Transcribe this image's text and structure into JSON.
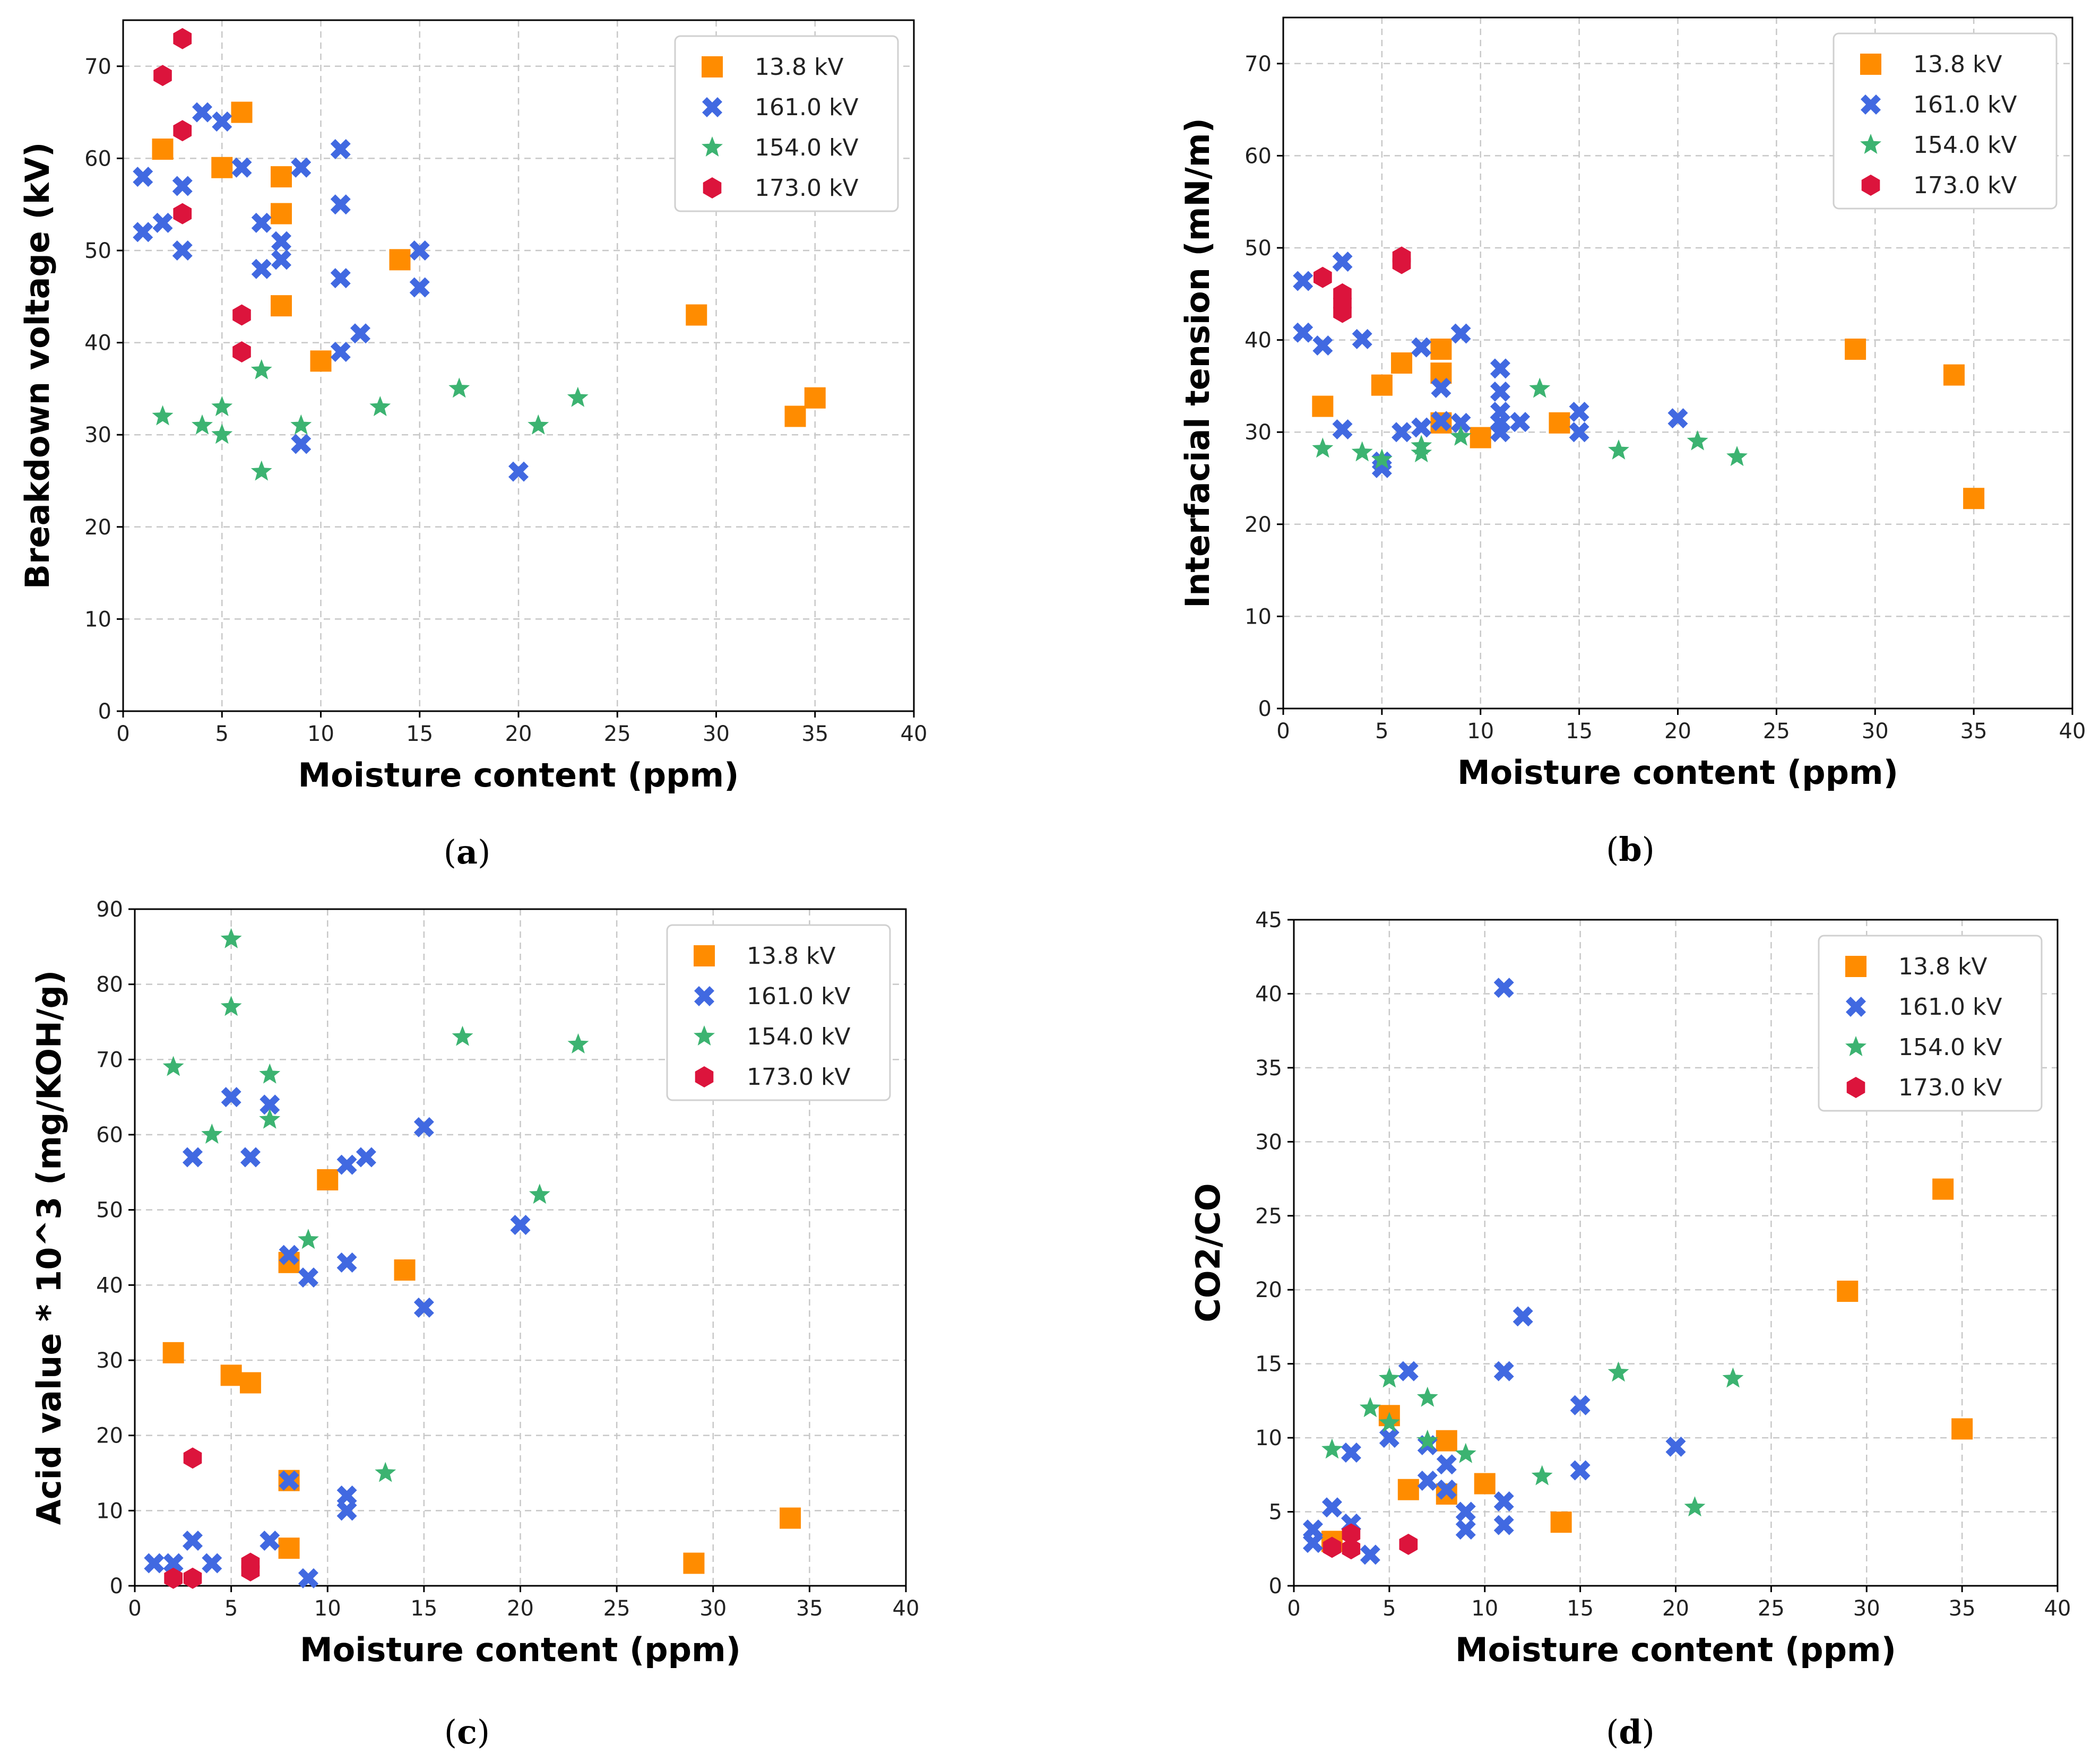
{
  "series_styles": [
    {
      "name": "13.8 kV",
      "marker": "square",
      "color": "#FF8C00"
    },
    {
      "name": "161.0 kV",
      "marker": "x",
      "color": "#4169E1"
    },
    {
      "name": "154.0 kV",
      "marker": "star",
      "color": "#3CB371"
    },
    {
      "name": "173.0 kV",
      "marker": "hexagon",
      "color": "#DC143C"
    }
  ],
  "chart_data": [
    {
      "type": "scatter",
      "caption_letter": "a",
      "xlabel": "Moisture content (ppm)",
      "ylabel": "Breakdown voltage (kV)",
      "xlim": [
        0,
        40
      ],
      "ylim": [
        0,
        75
      ],
      "xticks": [
        0,
        5,
        10,
        15,
        20,
        25,
        30,
        35,
        40
      ],
      "yticks": [
        0,
        10,
        20,
        30,
        40,
        50,
        60,
        70
      ],
      "legend_position": "top-right",
      "series": [
        {
          "name": "13.8 kV",
          "points": [
            [
              2,
              61
            ],
            [
              5,
              59
            ],
            [
              6,
              65
            ],
            [
              8,
              58
            ],
            [
              8,
              54
            ],
            [
              8,
              44
            ],
            [
              10,
              38
            ],
            [
              14,
              49
            ],
            [
              29,
              43
            ],
            [
              34,
              32
            ],
            [
              35,
              34
            ]
          ]
        },
        {
          "name": "161.0 kV",
          "points": [
            [
              1,
              58
            ],
            [
              1,
              52
            ],
            [
              2,
              53
            ],
            [
              3,
              57
            ],
            [
              3,
              50
            ],
            [
              4,
              65
            ],
            [
              5,
              64
            ],
            [
              6,
              59
            ],
            [
              7,
              53
            ],
            [
              7,
              48
            ],
            [
              8,
              51
            ],
            [
              8,
              49
            ],
            [
              9,
              59
            ],
            [
              9,
              29
            ],
            [
              11,
              61
            ],
            [
              11,
              55
            ],
            [
              11,
              47
            ],
            [
              11,
              39
            ],
            [
              12,
              41
            ],
            [
              15,
              50
            ],
            [
              15,
              46
            ],
            [
              20,
              26
            ]
          ]
        },
        {
          "name": "154.0 kV",
          "points": [
            [
              2,
              32
            ],
            [
              4,
              31
            ],
            [
              5,
              33
            ],
            [
              5,
              30
            ],
            [
              7,
              37
            ],
            [
              7,
              26
            ],
            [
              9,
              31
            ],
            [
              13,
              33
            ],
            [
              17,
              35
            ],
            [
              21,
              31
            ],
            [
              23,
              34
            ]
          ]
        },
        {
          "name": "173.0 kV",
          "points": [
            [
              2,
              69
            ],
            [
              3,
              73
            ],
            [
              3,
              63
            ],
            [
              3,
              54
            ],
            [
              6,
              43
            ],
            [
              6,
              39
            ]
          ]
        }
      ]
    },
    {
      "type": "scatter",
      "caption_letter": "b",
      "xlabel": "Moisture content (ppm)",
      "ylabel": "Interfacial tension (mN/m)",
      "xlim": [
        0,
        40
      ],
      "ylim": [
        0,
        75
      ],
      "xticks": [
        0,
        5,
        10,
        15,
        20,
        25,
        30,
        35,
        40
      ],
      "yticks": [
        0,
        10,
        20,
        30,
        40,
        50,
        60,
        70
      ],
      "legend_position": "top-right",
      "series": [
        {
          "name": "13.8 kV",
          "points": [
            [
              2,
              32.8
            ],
            [
              5,
              35.1
            ],
            [
              6,
              37.5
            ],
            [
              8,
              39
            ],
            [
              8,
              36.4
            ],
            [
              8,
              31
            ],
            [
              10,
              29.4
            ],
            [
              14,
              31
            ],
            [
              29,
              39
            ],
            [
              34,
              36.2
            ],
            [
              35,
              22.8
            ]
          ]
        },
        {
          "name": "161.0 kV",
          "points": [
            [
              1,
              46.4
            ],
            [
              1,
              40.8
            ],
            [
              2,
              39.4
            ],
            [
              3,
              48.5
            ],
            [
              3,
              30.3
            ],
            [
              4,
              40.1
            ],
            [
              5,
              26.8
            ],
            [
              5,
              26.1
            ],
            [
              6,
              30
            ],
            [
              7,
              39.2
            ],
            [
              7,
              30.5
            ],
            [
              8,
              34.8
            ],
            [
              8,
              31.2
            ],
            [
              9,
              40.7
            ],
            [
              9,
              31
            ],
            [
              11,
              36.9
            ],
            [
              11,
              34.4
            ],
            [
              11,
              32.2
            ],
            [
              11,
              31
            ],
            [
              11,
              30
            ],
            [
              12,
              31.1
            ],
            [
              15,
              32.2
            ],
            [
              15,
              30
            ],
            [
              20,
              31.5
            ]
          ]
        },
        {
          "name": "154.0 kV",
          "points": [
            [
              2,
              28.2
            ],
            [
              4,
              27.8
            ],
            [
              5,
              27
            ],
            [
              7,
              28.5
            ],
            [
              7,
              27.7
            ],
            [
              9,
              29.5
            ],
            [
              13,
              34.7
            ],
            [
              17,
              28
            ],
            [
              21,
              29
            ],
            [
              23,
              27.3
            ]
          ]
        },
        {
          "name": "173.0 kV",
          "points": [
            [
              2,
              46.8
            ],
            [
              3,
              45
            ],
            [
              3,
              44
            ],
            [
              3,
              43
            ],
            [
              6,
              49
            ],
            [
              6,
              48.3
            ]
          ]
        }
      ]
    },
    {
      "type": "scatter",
      "caption_letter": "c",
      "xlabel": "Moisture content (ppm)",
      "ylabel": "Acid value * 10^3 (mg/KOH/g)",
      "xlim": [
        0,
        40
      ],
      "ylim": [
        0,
        90
      ],
      "xticks": [
        0,
        5,
        10,
        15,
        20,
        25,
        30,
        35,
        40
      ],
      "yticks": [
        0,
        10,
        20,
        30,
        40,
        50,
        60,
        70,
        80,
        90
      ],
      "legend_position": "top-right",
      "series": [
        {
          "name": "13.8 kV",
          "points": [
            [
              2,
              31
            ],
            [
              5,
              28
            ],
            [
              6,
              27
            ],
            [
              8,
              43
            ],
            [
              8,
              14
            ],
            [
              8,
              5
            ],
            [
              10,
              54
            ],
            [
              14,
              42
            ],
            [
              29,
              3
            ],
            [
              34,
              9
            ]
          ]
        },
        {
          "name": "161.0 kV",
          "points": [
            [
              1,
              3
            ],
            [
              2,
              3
            ],
            [
              3,
              57
            ],
            [
              3,
              6
            ],
            [
              4,
              3
            ],
            [
              5,
              65
            ],
            [
              6,
              57
            ],
            [
              7,
              64
            ],
            [
              7,
              6
            ],
            [
              8,
              44
            ],
            [
              8,
              14
            ],
            [
              9,
              41
            ],
            [
              9,
              1
            ],
            [
              11,
              56
            ],
            [
              11,
              43
            ],
            [
              11,
              12
            ],
            [
              11,
              10
            ],
            [
              12,
              57
            ],
            [
              15,
              61
            ],
            [
              15,
              37
            ],
            [
              20,
              48
            ]
          ]
        },
        {
          "name": "154.0 kV",
          "points": [
            [
              2,
              69
            ],
            [
              4,
              60
            ],
            [
              5,
              86
            ],
            [
              5,
              77
            ],
            [
              7,
              68
            ],
            [
              7,
              62
            ],
            [
              9,
              46
            ],
            [
              13,
              15
            ],
            [
              17,
              73
            ],
            [
              21,
              52
            ],
            [
              23,
              72
            ]
          ]
        },
        {
          "name": "173.0 kV",
          "points": [
            [
              2,
              1
            ],
            [
              3,
              17
            ],
            [
              3,
              1
            ],
            [
              6,
              3
            ],
            [
              6,
              2
            ]
          ]
        }
      ]
    },
    {
      "type": "scatter",
      "caption_letter": "d",
      "xlabel": "Moisture content (ppm)",
      "ylabel": "CO2/CO",
      "xlim": [
        0,
        40
      ],
      "ylim": [
        0,
        45
      ],
      "xticks": [
        0,
        5,
        10,
        15,
        20,
        25,
        30,
        35,
        40
      ],
      "yticks": [
        0,
        5,
        10,
        15,
        20,
        25,
        30,
        35,
        40,
        45
      ],
      "legend_position": "top-right",
      "series": [
        {
          "name": "13.8 kV",
          "points": [
            [
              2,
              3
            ],
            [
              5,
              11.5
            ],
            [
              6,
              6.5
            ],
            [
              8,
              9.8
            ],
            [
              8,
              6.2
            ],
            [
              10,
              6.9
            ],
            [
              14,
              4.3
            ],
            [
              29,
              19.9
            ],
            [
              34,
              26.8
            ],
            [
              35,
              10.6
            ]
          ]
        },
        {
          "name": "161.0 kV",
          "points": [
            [
              1,
              3.8
            ],
            [
              1,
              2.9
            ],
            [
              2,
              5.3
            ],
            [
              3,
              9
            ],
            [
              3,
              4.2
            ],
            [
              4,
              2.1
            ],
            [
              5,
              10
            ],
            [
              6,
              14.5
            ],
            [
              7,
              9.5
            ],
            [
              7,
              7.1
            ],
            [
              8,
              8.2
            ],
            [
              8,
              6.5
            ],
            [
              9,
              5
            ],
            [
              9,
              3.8
            ],
            [
              11,
              40.4
            ],
            [
              11,
              14.5
            ],
            [
              11,
              5.7
            ],
            [
              11,
              4.1
            ],
            [
              12,
              18.2
            ],
            [
              15,
              12.2
            ],
            [
              15,
              7.8
            ],
            [
              20,
              9.4
            ]
          ]
        },
        {
          "name": "154.0 kV",
          "points": [
            [
              2,
              9.2
            ],
            [
              4,
              12
            ],
            [
              5,
              14
            ],
            [
              5,
              11
            ],
            [
              7,
              12.7
            ],
            [
              7,
              9.8
            ],
            [
              9,
              8.9
            ],
            [
              13,
              7.4
            ],
            [
              17,
              14.4
            ],
            [
              21,
              5.3
            ],
            [
              23,
              14
            ]
          ]
        },
        {
          "name": "173.0 kV",
          "points": [
            [
              2,
              2.6
            ],
            [
              3,
              3.5
            ],
            [
              3,
              2.5
            ],
            [
              6,
              2.8
            ]
          ]
        }
      ]
    }
  ]
}
